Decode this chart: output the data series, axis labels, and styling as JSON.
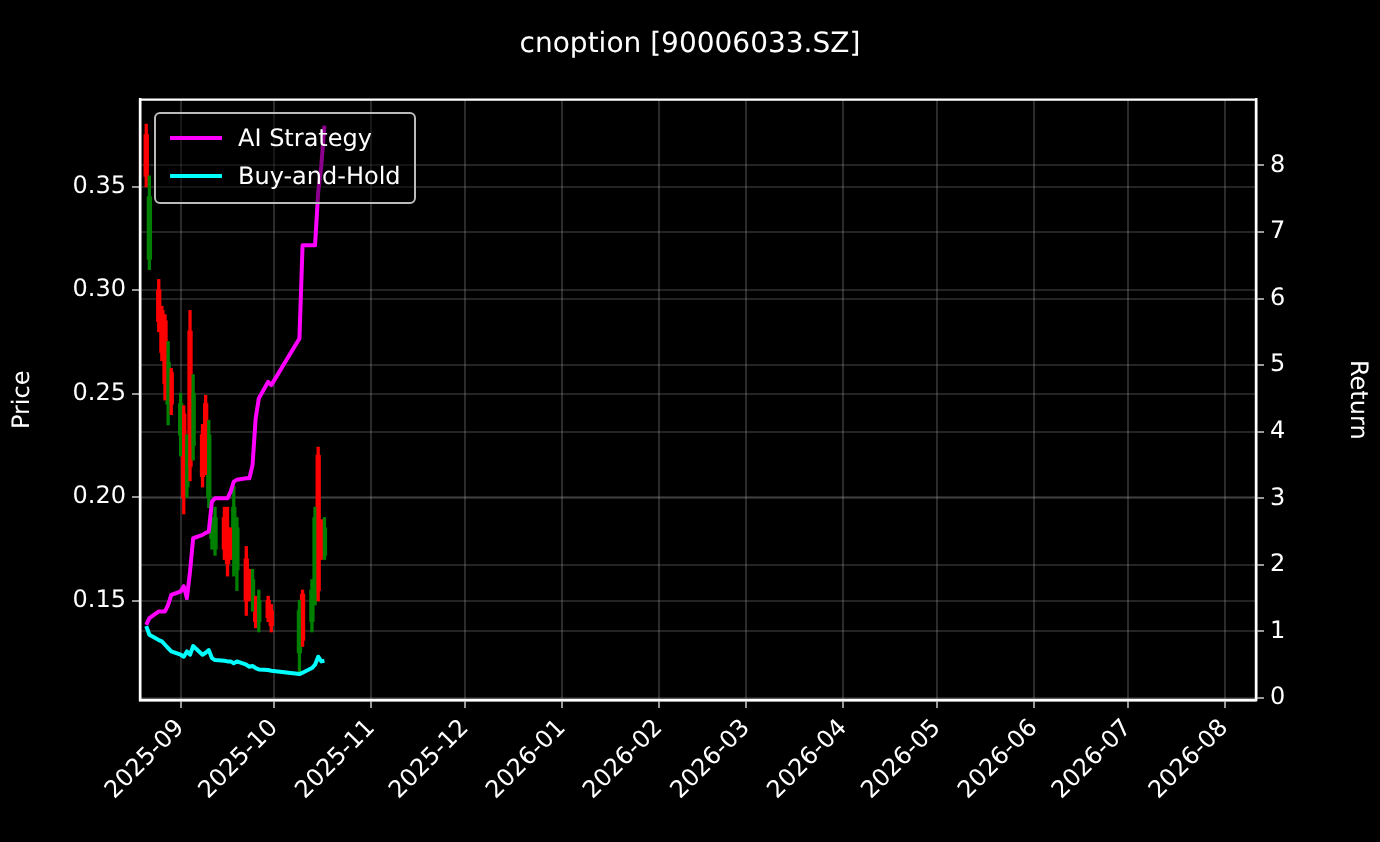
{
  "chart_data": {
    "type": "candlestick",
    "title": "cnoption [90006033.SZ]",
    "ylabel": "Price",
    "y2label": "Return",
    "x": [
      "2025-08-21",
      "2025-08-22",
      "2025-08-25",
      "2025-08-26",
      "2025-08-27",
      "2025-08-28",
      "2025-08-29",
      "2025-09-01",
      "2025-09-02",
      "2025-09-03",
      "2025-09-04",
      "2025-09-05",
      "2025-09-08",
      "2025-09-09",
      "2025-09-10",
      "2025-09-11",
      "2025-09-12",
      "2025-09-15",
      "2025-09-16",
      "2025-09-17",
      "2025-09-18",
      "2025-09-19",
      "2025-09-22",
      "2025-09-23",
      "2025-09-24",
      "2025-09-25",
      "2025-09-26",
      "2025-09-29",
      "2025-09-30",
      "2025-10-09",
      "2025-10-10",
      "2025-10-13",
      "2025-10-14",
      "2025-10-15",
      "2025-10-16",
      "2025-10-17"
    ],
    "ohlc": [
      [
        0.375,
        0.38,
        0.35,
        0.355
      ],
      [
        0.315,
        0.355,
        0.31,
        0.345
      ],
      [
        0.3,
        0.305,
        0.28,
        0.285
      ],
      [
        0.29,
        0.292,
        0.266,
        0.27
      ],
      [
        0.285,
        0.288,
        0.247,
        0.255
      ],
      [
        0.245,
        0.275,
        0.235,
        0.265
      ],
      [
        0.26,
        0.262,
        0.24,
        0.245
      ],
      [
        0.23,
        0.25,
        0.22,
        0.245
      ],
      [
        0.24,
        0.244,
        0.192,
        0.2
      ],
      [
        0.205,
        0.23,
        0.2,
        0.225
      ],
      [
        0.28,
        0.29,
        0.208,
        0.215
      ],
      [
        0.225,
        0.259,
        0.218,
        0.25
      ],
      [
        0.23,
        0.235,
        0.205,
        0.21
      ],
      [
        0.245,
        0.249,
        0.211,
        0.22
      ],
      [
        0.2,
        0.237,
        0.195,
        0.23
      ],
      [
        0.18,
        0.19,
        0.175,
        0.188
      ],
      [
        0.175,
        0.195,
        0.172,
        0.19
      ],
      [
        0.19,
        0.195,
        0.17,
        0.175
      ],
      [
        0.185,
        0.195,
        0.162,
        0.168
      ],
      [
        0.18,
        0.185,
        0.17,
        0.172
      ],
      [
        0.17,
        0.205,
        0.162,
        0.195
      ],
      [
        0.165,
        0.19,
        0.155,
        0.185
      ],
      [
        0.17,
        0.176,
        0.143,
        0.15
      ],
      [
        0.16,
        0.165,
        0.15,
        0.152
      ],
      [
        0.15,
        0.165,
        0.145,
        0.16
      ],
      [
        0.15,
        0.152,
        0.137,
        0.14
      ],
      [
        0.14,
        0.155,
        0.135,
        0.15
      ],
      [
        0.15,
        0.152,
        0.14,
        0.142
      ],
      [
        0.145,
        0.148,
        0.135,
        0.138
      ],
      [
        0.125,
        0.15,
        0.114,
        0.145
      ],
      [
        0.153,
        0.155,
        0.128,
        0.131
      ],
      [
        0.14,
        0.16,
        0.135,
        0.155
      ],
      [
        0.15,
        0.195,
        0.148,
        0.19
      ],
      [
        0.22,
        0.224,
        0.15,
        0.155
      ],
      [
        0.185,
        0.189,
        0.17,
        0.172
      ],
      [
        0.172,
        0.19,
        0.17,
        0.185
      ]
    ],
    "colors": [
      "#ff0000",
      "#008000",
      "#ff0000",
      "#ff0000",
      "#ff0000",
      "#008000",
      "#ff0000",
      "#008000",
      "#ff0000",
      "#008000",
      "#ff0000",
      "#008000",
      "#ff0000",
      "#ff0000",
      "#008000",
      "#008000",
      "#008000",
      "#ff0000",
      "#ff0000",
      "#ff0000",
      "#008000",
      "#008000",
      "#ff0000",
      "#ff0000",
      "#008000",
      "#ff0000",
      "#008000",
      "#ff0000",
      "#ff0000",
      "#008000",
      "#ff0000",
      "#008000",
      "#008000",
      "#ff0000",
      "#ff0000",
      "#008000"
    ],
    "series": [
      {
        "type": "line",
        "name": "AI Strategy",
        "color": "#ff00ff",
        "axis": "y2",
        "values": [
          1.1,
          1.2,
          1.3,
          1.3,
          1.3,
          1.4,
          1.55,
          1.6,
          1.68,
          1.5,
          1.9,
          2.4,
          2.45,
          2.48,
          2.5,
          2.95,
          3.0,
          3.0,
          3.0,
          3.1,
          3.25,
          3.28,
          3.3,
          3.3,
          3.5,
          4.2,
          4.5,
          4.75,
          4.7,
          5.4,
          6.8,
          6.8,
          6.8,
          7.6,
          8.0,
          8.6
        ]
      },
      {
        "type": "line",
        "name": "Buy-and-Hold",
        "color": "#00ffff",
        "axis": "y2",
        "values": [
          1.08,
          0.95,
          0.87,
          0.85,
          0.8,
          0.75,
          0.7,
          0.65,
          0.62,
          0.7,
          0.65,
          0.78,
          0.65,
          0.68,
          0.72,
          0.6,
          0.57,
          0.56,
          0.55,
          0.55,
          0.52,
          0.55,
          0.5,
          0.47,
          0.48,
          0.45,
          0.43,
          0.42,
          0.41,
          0.36,
          0.38,
          0.45,
          0.5,
          0.62,
          0.55,
          0.56
        ]
      }
    ],
    "xlim": [
      "2025-08-19",
      "2026-08-11"
    ],
    "xticks": [
      "2025-09",
      "2025-10",
      "2025-11",
      "2025-12",
      "2026-01",
      "2026-02",
      "2026-03",
      "2026-04",
      "2026-05",
      "2026-06",
      "2026-07",
      "2026-08"
    ],
    "ylim": [
      0.102,
      0.392
    ],
    "yticks": [
      {
        "value": 0.15,
        "label": "0.15"
      },
      {
        "value": 0.2,
        "label": "0.20"
      },
      {
        "value": 0.25,
        "label": "0.25"
      },
      {
        "value": 0.3,
        "label": "0.30"
      },
      {
        "value": 0.35,
        "label": "0.35"
      }
    ],
    "y2lim": [
      -0.03,
      8.99
    ],
    "y2ticks": [
      0,
      1,
      2,
      3,
      4,
      5,
      6,
      7,
      8
    ],
    "grid": true,
    "legend": "top left",
    "line_style": "solid",
    "marker": "none"
  }
}
